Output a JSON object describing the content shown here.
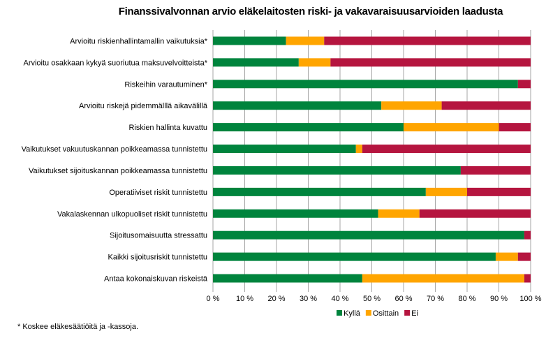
{
  "chart_data": {
    "type": "bar",
    "orientation": "horizontal",
    "stacked": true,
    "title": "Finanssivalvonnan arvio eläkelaitosten riski- ja vakavaraisuusarvioiden laadusta",
    "categories": [
      "Arvioitu riskienhallintamallin vaikutuksia*",
      "Arvioitu osakkaan kykyä suoriutua maksuvelvoitteista*",
      "Riskeihin varautuminen*",
      "Arvioitu riskejä pidemmälllä aikavälillä",
      "Riskien hallinta kuvattu",
      "Vaikutukset vakuutuskannan poikkeamassa tunnistettu",
      "Vaikutukset sijoituskannan poikkeamassa tunnistettu",
      "Operatiiviset riskit tunnistettu",
      "Vakalaskennan ulkopuoliset riskit tunnistettu",
      "Sijoitusomaisuutta stressattu",
      "Kaikki sijoitusriskit tunnistettu",
      "Antaa kokonaiskuvan riskeistä"
    ],
    "series": [
      {
        "name": "Kyllä",
        "color": "#00843d",
        "values": [
          23,
          27,
          96,
          53,
          60,
          45,
          78,
          67,
          52,
          98,
          89,
          47
        ]
      },
      {
        "name": "Osittain",
        "color": "#ffa500",
        "values": [
          12,
          10,
          0,
          19,
          30,
          2,
          0,
          13,
          13,
          0,
          7,
          51
        ]
      },
      {
        "name": "Ei",
        "color": "#b5153f",
        "values": [
          65,
          63,
          4,
          28,
          10,
          53,
          22,
          20,
          35,
          2,
          4,
          2
        ]
      }
    ],
    "xlim": [
      0,
      100
    ],
    "xticks": [
      "0 %",
      "10 %",
      "20 %",
      "30 %",
      "40 %",
      "50 %",
      "60 %",
      "70 %",
      "80 %",
      "90 %",
      "100 %"
    ],
    "grid": true,
    "legend_position": "bottom",
    "footnote": "* Koskee eläkesäätiöitä ja -kassoja."
  }
}
